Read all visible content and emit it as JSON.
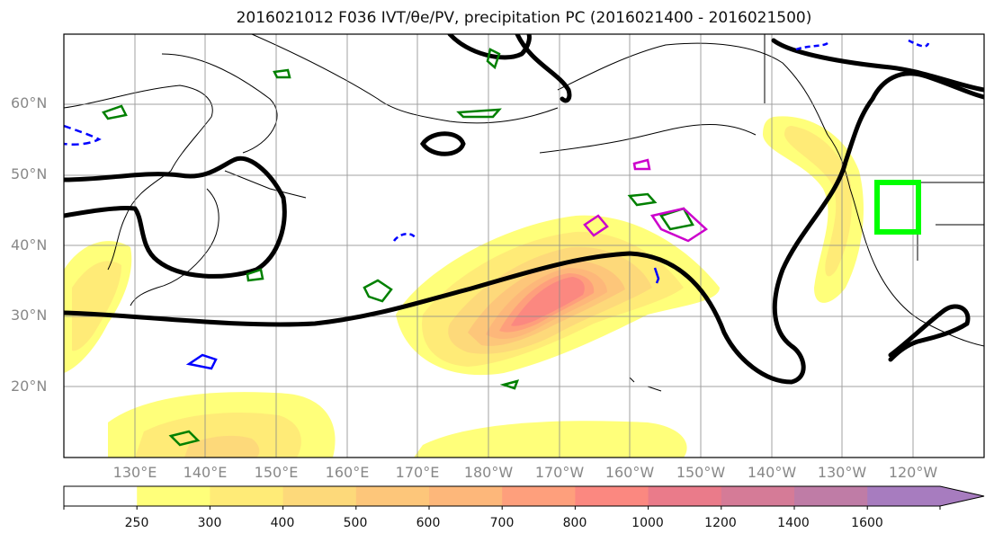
{
  "title": "2016021012 F036 IVT/θe/PV, precipitation PC (2016021400 - 2016021500)",
  "lat_labels": [
    "60°N",
    "50°N",
    "40°N",
    "30°N",
    "20°N"
  ],
  "lon_labels": [
    "130°E",
    "140°E",
    "150°E",
    "160°E",
    "170°E",
    "180°W",
    "170°W",
    "160°W",
    "150°W",
    "140°W",
    "130°W",
    "120°W"
  ],
  "colorbar": {
    "ticks": [
      "250",
      "300",
      "400",
      "500",
      "600",
      "700",
      "800",
      "1000",
      "1200",
      "1400",
      "1600"
    ],
    "colors": [
      "#ffffff",
      "#ffff7a",
      "#ffeb77",
      "#fdd97a",
      "#fdc67a",
      "#fdb77a",
      "#fe9f7c",
      "#fb8880",
      "#ea7b8a",
      "#d57b97",
      "#bf7ca6",
      "#a77cbf"
    ],
    "extend": "max"
  },
  "map": {
    "extent": {
      "lon_min": 120,
      "lon_max": 250,
      "lat_min": 10,
      "lat_max": 70
    },
    "gridlines": true,
    "highlight_box_color": "#00ff00",
    "contour_colors": {
      "theta_e": "#000000",
      "pv_pos": "#008000",
      "pv_neg": "#0000ff",
      "pv_extra": "#cc00cc"
    },
    "layers": [
      "ivt-shading",
      "coastlines",
      "gridlines",
      "theta-e-contour",
      "pv-contours",
      "target-box"
    ]
  }
}
